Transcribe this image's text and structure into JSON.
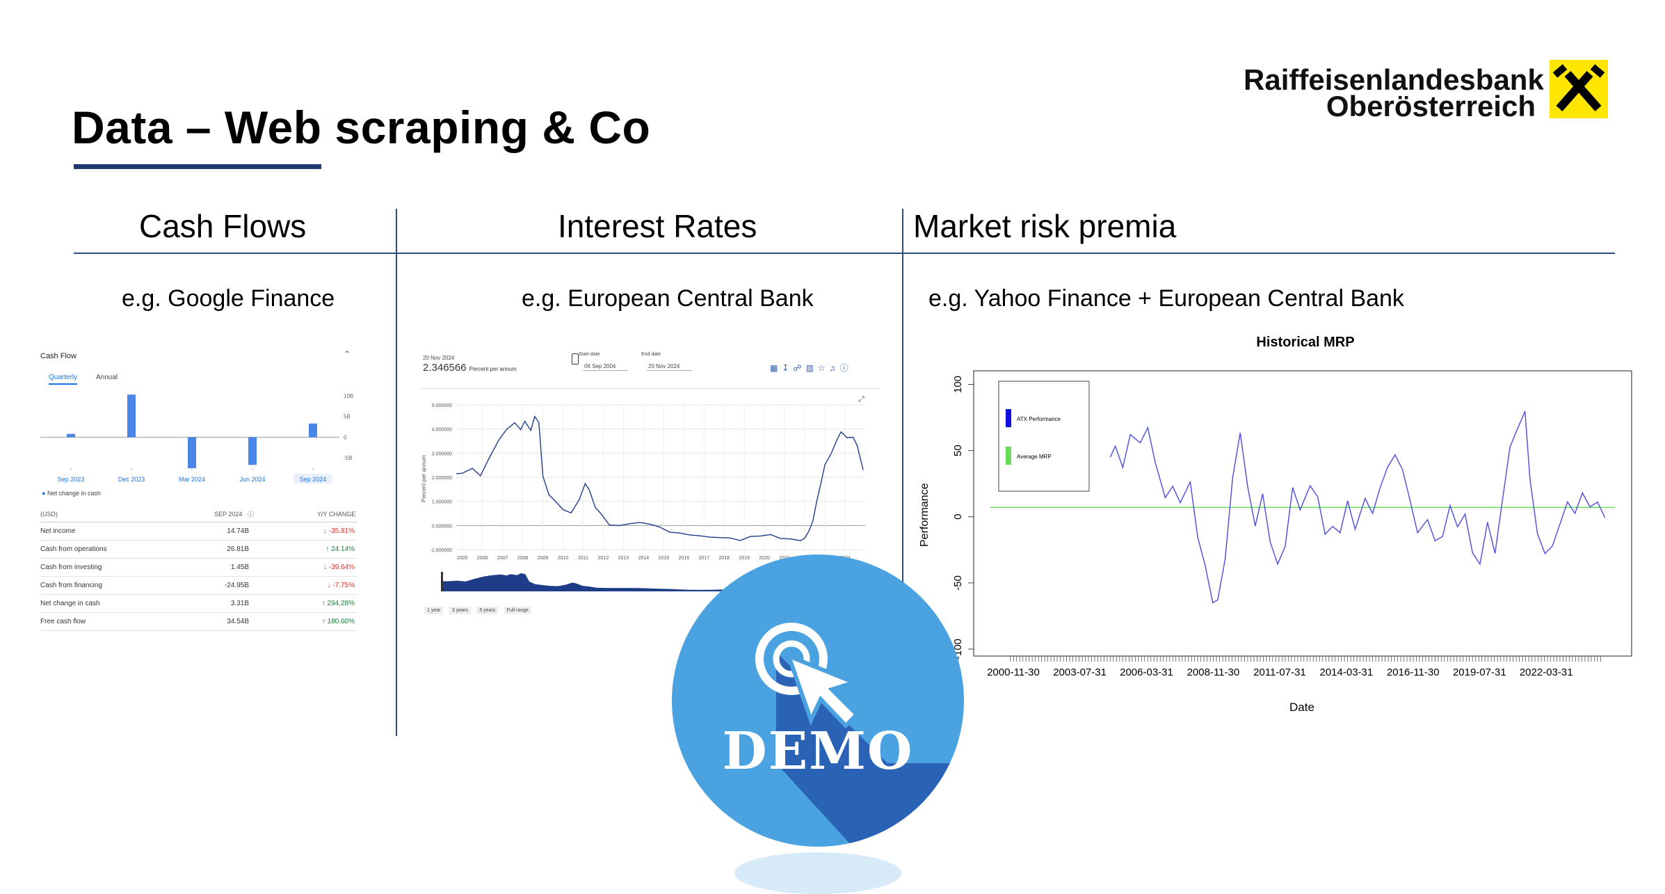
{
  "slide": {
    "title": "Data – Web scraping & Co",
    "logo_line1": "Raiffeisenlandesbank",
    "logo_line2": "Oberösterreich",
    "demo_label": "DEMO"
  },
  "columns": [
    {
      "header": "Cash Flows",
      "source": "e.g. Google Finance"
    },
    {
      "header": "Interest Rates",
      "source": "e.g. European Central Bank"
    },
    {
      "header": "Market risk premia",
      "source": "e.g. Yahoo Finance + European Central Bank"
    }
  ],
  "cash_flow": {
    "title": "Cash Flow",
    "tabs": [
      "Quarterly",
      "Annual"
    ],
    "y_ticks": [
      "10B",
      "5B",
      "0",
      "-5B"
    ],
    "legend": "Net change in cash",
    "header_currency": "(USD)",
    "header_period": "SEP 2024",
    "header_change": "Y/Y CHANGE",
    "rows": [
      {
        "label": "Net income",
        "value": "14.74B",
        "change": "↓ -35.81%",
        "dir": "down"
      },
      {
        "label": "Cash from operations",
        "value": "26.81B",
        "change": "↑ 24.14%",
        "dir": "up"
      },
      {
        "label": "Cash from investing",
        "value": "1.45B",
        "change": "↓ -39.64%",
        "dir": "down"
      },
      {
        "label": "Cash from financing",
        "value": "-24.95B",
        "change": "↓ -7.75%",
        "dir": "down"
      },
      {
        "label": "Net change in cash",
        "value": "3.31B",
        "change": "↑ 294.28%",
        "dir": "up"
      },
      {
        "label": "Free cash flow",
        "value": "34.54B",
        "change": "↑ 180.60%",
        "dir": "up"
      }
    ]
  },
  "ecb": {
    "date": "20 Nov 2024",
    "value": "2.346566",
    "unit": "Percent per annum",
    "start_label": "Start date",
    "start_value": "06 Sep 2004",
    "end_label": "End date",
    "end_value": "20 Nov 2024",
    "y_axis_label": "Percent per annum",
    "ranges": [
      "1 year",
      "3 years",
      "5 years",
      "Full range"
    ]
  },
  "chart_data": [
    {
      "type": "bar",
      "title": "Cash Flow",
      "categories": [
        "Sep 2023",
        "Dec 2023",
        "Mar 2024",
        "Jun 2024",
        "Sep 2024"
      ],
      "series": [
        {
          "name": "Net change in cash",
          "values": [
            0.8,
            10.3,
            -7.5,
            -6.7,
            3.31
          ]
        }
      ],
      "ylim": [
        -7.5,
        11
      ],
      "y_ticks": [
        "10B",
        "5B",
        "0",
        "-5B"
      ]
    },
    {
      "type": "line",
      "title": "",
      "ylabel": "Percent per annum",
      "x_ticks": [
        "2005",
        "2006",
        "2007",
        "2008",
        "2009",
        "2010",
        "2011",
        "2012",
        "2013",
        "2014",
        "2015",
        "2016",
        "2017",
        "2018",
        "2019",
        "2020",
        "2021",
        "2022",
        "2023",
        "2024"
      ],
      "y_ticks": [
        "5.000000",
        "4.000000",
        "3.000000",
        "2.000000",
        "1.000000",
        "0.000000",
        "-1.000000"
      ],
      "ylim": [
        -1,
        5
      ],
      "x": [
        2004.7,
        2005.0,
        2005.5,
        2005.9,
        2006.3,
        2006.8,
        2007.2,
        2007.6,
        2007.9,
        2008.1,
        2008.4,
        2008.6,
        2008.8,
        2009.0,
        2009.3,
        2009.7,
        2010.0,
        2010.4,
        2010.8,
        2011.1,
        2011.3,
        2011.6,
        2011.9,
        2012.3,
        2012.8,
        2013.3,
        2013.8,
        2014.3,
        2014.8,
        2015.3,
        2015.8,
        2016.3,
        2016.8,
        2017.3,
        2017.8,
        2018.3,
        2018.8,
        2019.3,
        2019.8,
        2020.3,
        2020.8,
        2021.3,
        2021.8,
        2022.0,
        2022.2,
        2022.4,
        2022.6,
        2022.8,
        2023.0,
        2023.3,
        2023.6,
        2023.8,
        2024.1,
        2024.4,
        2024.6,
        2024.9
      ],
      "series": [
        {
          "name": "",
          "values": [
            2.15,
            2.1,
            2.3,
            2.05,
            2.8,
            3.6,
            4.0,
            4.2,
            3.9,
            4.3,
            4.0,
            4.6,
            4.3,
            2.0,
            1.2,
            0.9,
            0.7,
            0.6,
            1.1,
            1.7,
            1.4,
            0.7,
            0.5,
            0.1,
            0.05,
            0.05,
            0.05,
            0.0,
            -0.05,
            -0.2,
            -0.25,
            -0.4,
            -0.5,
            -0.55,
            -0.5,
            -0.45,
            -0.55,
            -0.45,
            -0.5,
            -0.45,
            -0.55,
            -0.5,
            -0.55,
            -0.5,
            -0.3,
            0.1,
            1.0,
            1.8,
            2.6,
            3.0,
            3.5,
            3.8,
            3.6,
            3.7,
            3.4,
            2.35
          ]
        }
      ]
    },
    {
      "type": "line",
      "title": "Historical MRP",
      "xlabel": "Date",
      "ylabel": "Performance",
      "x_ticks": [
        "2000-11-30",
        "2003-07-31",
        "2006-03-31",
        "2008-11-30",
        "2011-07-31",
        "2014-03-31",
        "2016-11-30",
        "2019-07-31",
        "2022-03-31"
      ],
      "y_ticks": [
        "100",
        "50",
        "0",
        "-50",
        "-100"
      ],
      "ylim": [
        -100,
        105
      ],
      "legend": "top-left",
      "x": [
        2004.8,
        2005.0,
        2005.3,
        2005.6,
        2006.0,
        2006.3,
        2006.6,
        2007.0,
        2007.3,
        2007.6,
        2008.0,
        2008.3,
        2008.6,
        2008.9,
        2009.1,
        2009.4,
        2009.7,
        2010.0,
        2010.3,
        2010.6,
        2010.9,
        2011.2,
        2011.5,
        2011.8,
        2012.1,
        2012.4,
        2012.8,
        2013.1,
        2013.4,
        2013.7,
        2014.0,
        2014.3,
        2014.6,
        2015.0,
        2015.3,
        2015.6,
        2015.9,
        2016.2,
        2016.5,
        2016.8,
        2017.1,
        2017.5,
        2017.8,
        2018.1,
        2018.4,
        2018.7,
        2019.0,
        2019.3,
        2019.6,
        2019.9,
        2020.2,
        2020.5,
        2020.8,
        2021.1,
        2021.4,
        2021.6,
        2021.9,
        2022.2,
        2022.5,
        2022.8,
        2023.1,
        2023.4,
        2023.7,
        2024.0,
        2024.3,
        2024.6
      ],
      "series": [
        {
          "name": "ATX Performance",
          "values": [
            45,
            55,
            40,
            65,
            58,
            68,
            40,
            12,
            20,
            8,
            25,
            -15,
            -35,
            -62,
            -60,
            -30,
            30,
            62,
            20,
            -10,
            15,
            -20,
            -35,
            -20,
            25,
            8,
            25,
            15,
            -15,
            -10,
            -15,
            10,
            -10,
            15,
            5,
            25,
            40,
            48,
            35,
            10,
            -15,
            -5,
            -20,
            -15,
            10,
            -5,
            5,
            -25,
            -35,
            -5,
            -30,
            10,
            50,
            65,
            80,
            30,
            -10,
            -25,
            -20,
            -5,
            10,
            0,
            15,
            5,
            10,
            0
          ]
        },
        {
          "name": "Average MRP",
          "values": [
            7,
            7,
            7,
            7,
            7,
            7,
            7,
            7,
            7,
            7,
            7,
            7,
            7,
            7,
            7,
            7,
            7,
            7,
            7,
            7,
            7,
            7,
            7,
            7,
            7,
            7,
            7,
            7,
            7,
            7,
            7,
            7,
            7,
            7,
            7,
            7,
            7,
            7,
            7,
            7,
            7,
            7,
            7,
            7,
            7,
            7,
            7,
            7,
            7,
            7,
            7,
            7,
            7,
            7,
            7,
            7,
            7,
            7,
            7,
            7,
            7,
            7,
            7,
            7,
            7,
            7
          ]
        }
      ]
    }
  ]
}
